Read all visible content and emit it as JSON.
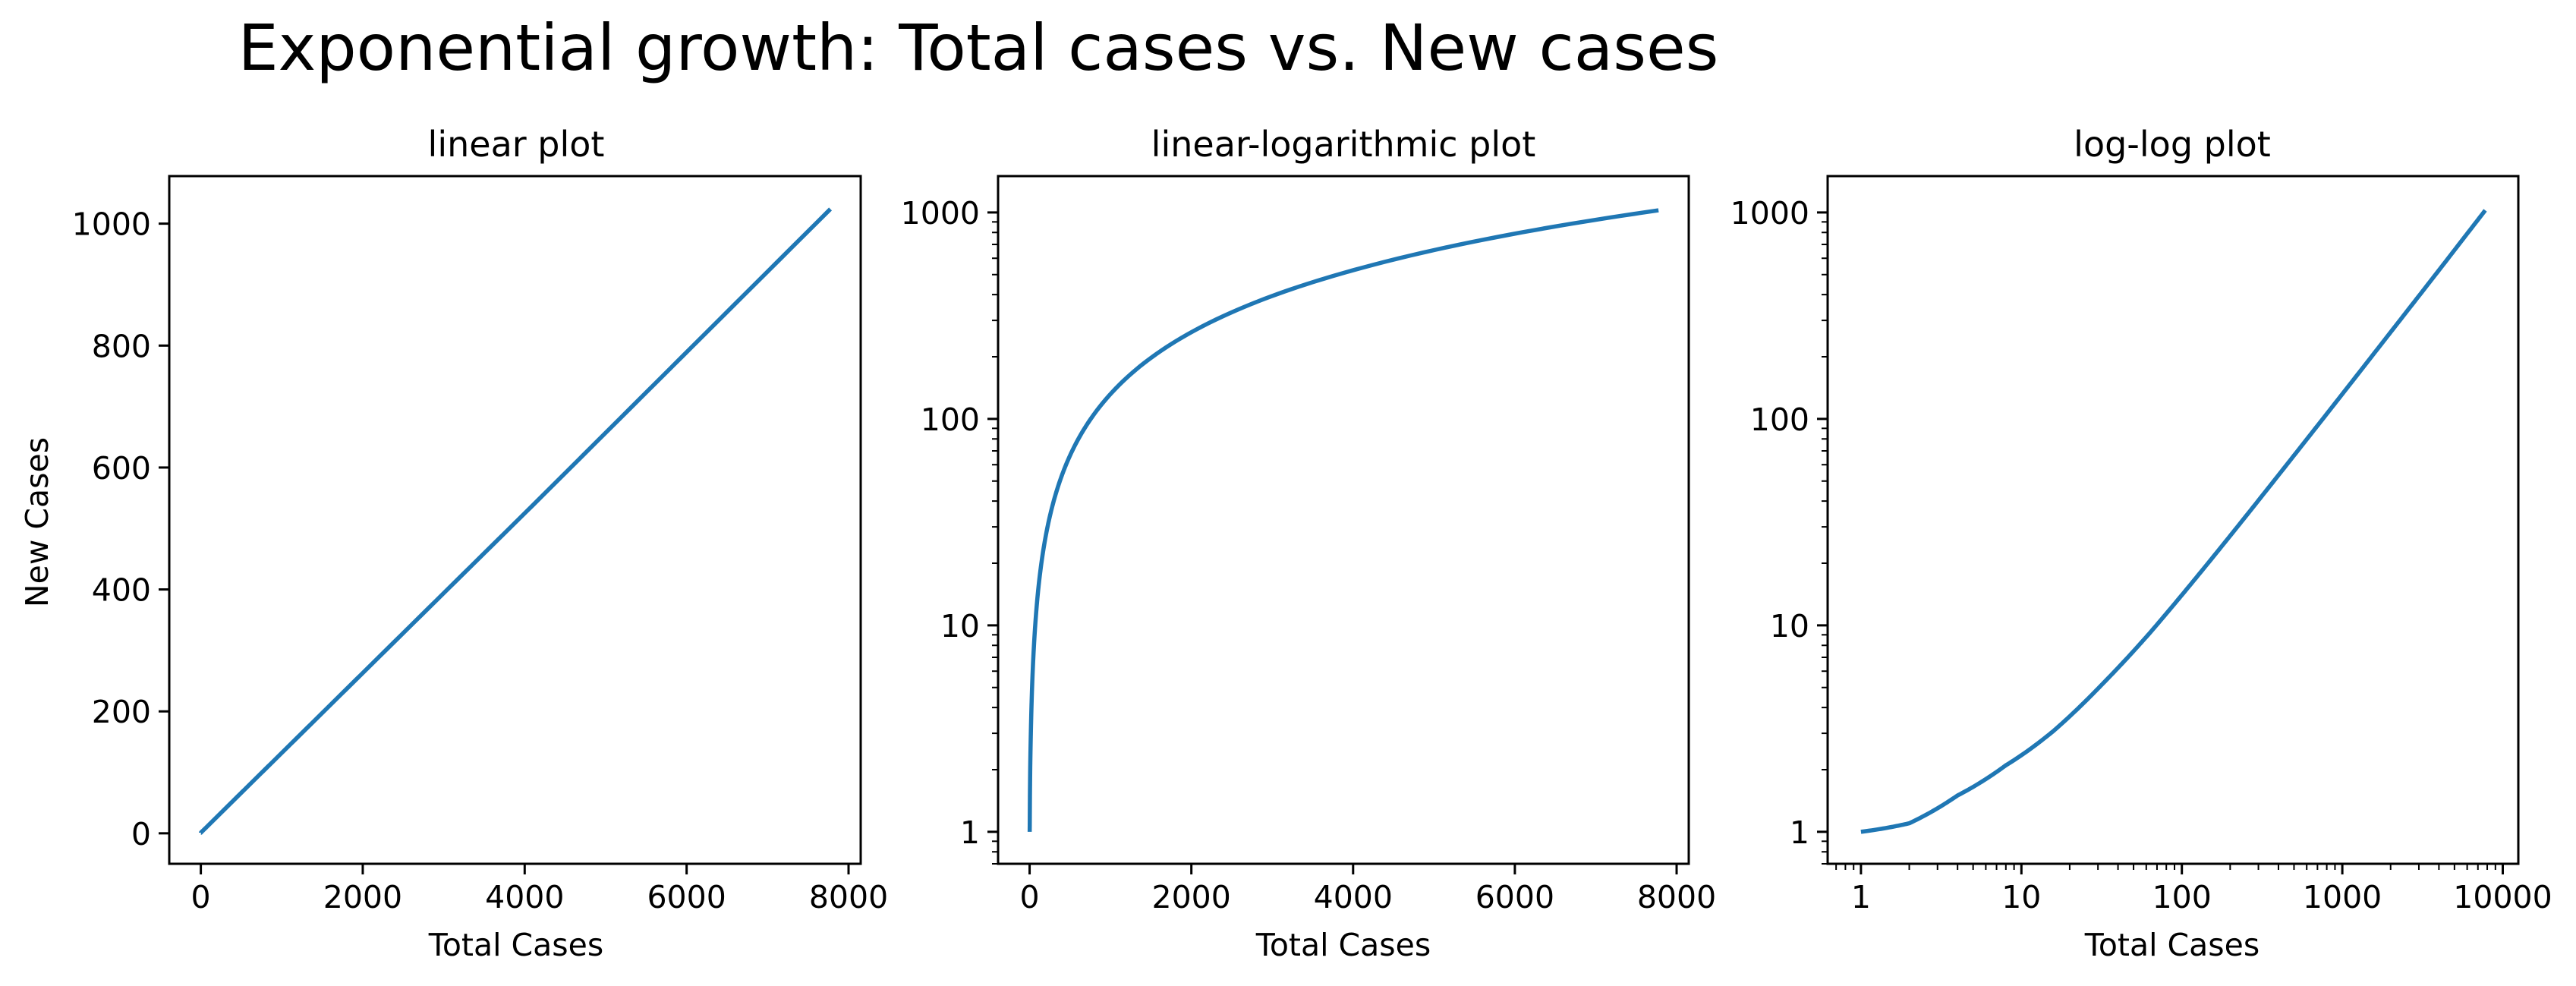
{
  "figure": {
    "suptitle": "Exponential growth: Total cases vs. New cases"
  },
  "colors": {
    "series": "#1f77b4",
    "axes": "#000000",
    "background": "#ffffff"
  },
  "chart_data": [
    {
      "type": "line",
      "title": "linear plot",
      "xlabel": "Total Cases",
      "ylabel": "New Cases",
      "xscale": "linear",
      "yscale": "linear",
      "xlim": [
        -390,
        8150
      ],
      "ylim": [
        -50,
        1078
      ],
      "xticks": [
        0,
        2000,
        4000,
        6000,
        8000
      ],
      "xtick_labels": [
        "0",
        "2000",
        "4000",
        "6000",
        "8000"
      ],
      "yticks": [
        0,
        200,
        400,
        600,
        800,
        1000
      ],
      "ytick_labels": [
        "0",
        "200",
        "400",
        "600",
        "800",
        "1000"
      ],
      "grid": false,
      "series": [
        {
          "x": [
            1,
            2,
            4,
            8,
            16,
            32,
            64,
            128,
            256,
            512,
            1024,
            2048,
            4096,
            7776
          ],
          "values": [
            1,
            1.1,
            1.5,
            2.1,
            3.1,
            5.2,
            9.3,
            17.7,
            34.5,
            68.1,
            135.1,
            269.3,
            537.5,
            1024
          ]
        }
      ]
    },
    {
      "type": "line",
      "title": "linear-logarithmic plot",
      "xlabel": "Total Cases",
      "ylabel": "",
      "xscale": "linear",
      "yscale": "log",
      "xlim": [
        -390,
        8150
      ],
      "ylim": [
        0.7,
        1500
      ],
      "xticks": [
        0,
        2000,
        4000,
        6000,
        8000
      ],
      "xtick_labels": [
        "0",
        "2000",
        "4000",
        "6000",
        "8000"
      ],
      "yticks": [
        1,
        10,
        100,
        1000
      ],
      "ytick_labels": [
        "1",
        "10",
        "100",
        "1000"
      ],
      "grid": false,
      "series": [
        {
          "x": [
            1,
            2,
            4,
            8,
            16,
            32,
            64,
            128,
            256,
            512,
            1024,
            2048,
            4096,
            7776
          ],
          "values": [
            1,
            1.1,
            1.5,
            2.1,
            3.1,
            5.2,
            9.3,
            17.7,
            34.5,
            68.1,
            135.1,
            269.3,
            537.5,
            1024
          ]
        }
      ]
    },
    {
      "type": "line",
      "title": "log-log plot",
      "xlabel": "Total Cases",
      "ylabel": "",
      "xscale": "log",
      "yscale": "log",
      "xlim": [
        0.62,
        12500
      ],
      "ylim": [
        0.7,
        1500
      ],
      "xticks": [
        1,
        10,
        100,
        1000,
        10000
      ],
      "xtick_labels": [
        "1",
        "10",
        "100",
        "1000",
        "10000"
      ],
      "yticks": [
        1,
        10,
        100,
        1000
      ],
      "ytick_labels": [
        "1",
        "10",
        "100",
        "1000"
      ],
      "grid": false,
      "series": [
        {
          "x": [
            1,
            2,
            4,
            8,
            16,
            32,
            64,
            128,
            256,
            512,
            1024,
            2048,
            4096,
            7776
          ],
          "values": [
            1,
            1.1,
            1.5,
            2.1,
            3.1,
            5.2,
            9.3,
            17.7,
            34.5,
            68.1,
            135.1,
            269.3,
            537.5,
            1024
          ]
        }
      ]
    }
  ]
}
